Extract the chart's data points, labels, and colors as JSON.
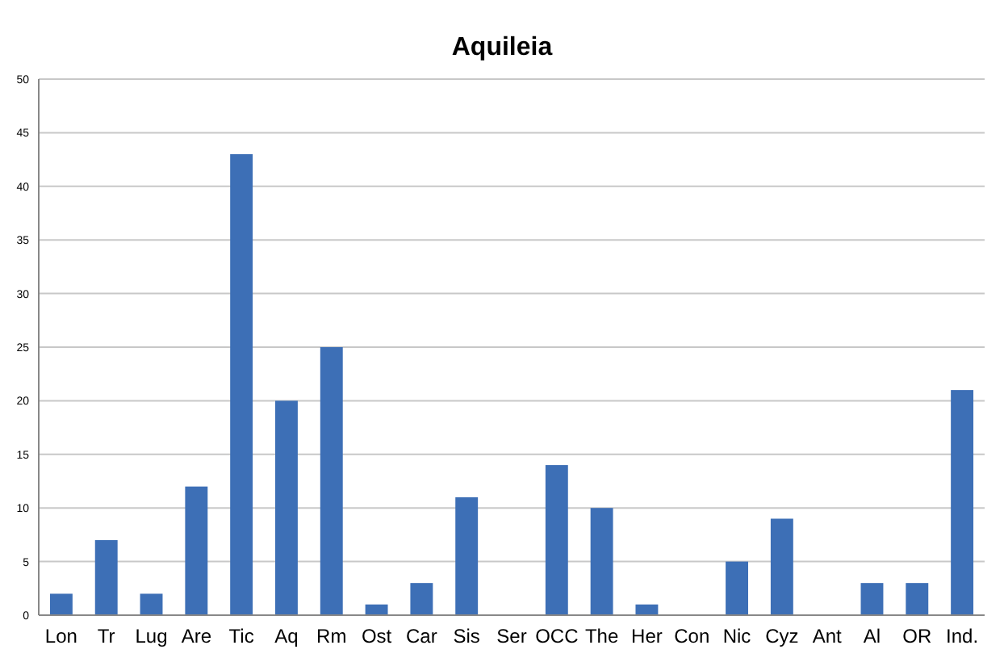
{
  "chart_data": {
    "type": "bar",
    "title": "Aquileia",
    "categories": [
      "Lon",
      "Tr",
      "Lug",
      "Are",
      "Tic",
      "Aq",
      "Rm",
      "Ost",
      "Car",
      "Sis",
      "Ser",
      "OCC",
      "The",
      "Her",
      "Con",
      "Nic",
      "Cyz",
      "Ant",
      "Al",
      "OR",
      "Ind."
    ],
    "values": [
      2,
      7,
      2,
      12,
      43,
      20,
      25,
      1,
      3,
      11,
      0,
      14,
      10,
      1,
      0,
      5,
      9,
      0,
      3,
      3,
      21
    ],
    "color": "#3d6fb6",
    "ylim": [
      0,
      50
    ],
    "yticks": [
      0,
      5,
      10,
      15,
      20,
      25,
      30,
      35,
      40,
      45,
      50
    ],
    "grid": "y"
  }
}
